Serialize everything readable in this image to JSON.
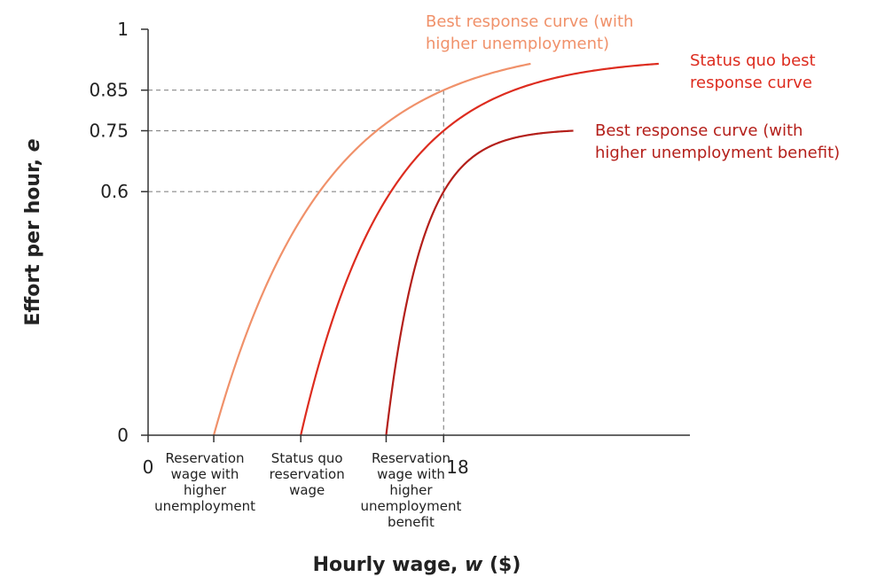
{
  "chart_data": {
    "type": "line",
    "title": "",
    "xlabel": {
      "text": "Hourly wage, ",
      "var": "w",
      "unit": " ($)"
    },
    "ylabel": {
      "text": "Effort per hour, ",
      "var": "e"
    },
    "xlim": [
      0,
      33
    ],
    "ylim": [
      0,
      1
    ],
    "grid": false,
    "x_ticks": [
      {
        "value": 0,
        "label": "0"
      },
      {
        "value": 18,
        "label": "18"
      }
    ],
    "y_ticks": [
      {
        "value": 0,
        "label": "0"
      },
      {
        "value": 0.6,
        "label": "0.6"
      },
      {
        "value": 0.75,
        "label": "0.75"
      },
      {
        "value": 0.85,
        "label": "0.85"
      },
      {
        "value": 1,
        "label": "1"
      }
    ],
    "wage_markers": [
      {
        "value": 4,
        "lines": [
          "Reservation",
          "wage with",
          "higher",
          "unemployment"
        ]
      },
      {
        "value": 9.3,
        "lines": [
          "Status quo",
          "reservation",
          "wage"
        ]
      },
      {
        "value": 14.5,
        "lines": [
          "Reservation",
          "wage with",
          "higher",
          "unemployment",
          "benefit"
        ]
      }
    ],
    "reference_lines": [
      {
        "x": 18,
        "y": 0.85
      },
      {
        "x": 18,
        "y": 0.75
      },
      {
        "x": 18,
        "y": 0.6
      }
    ],
    "series": [
      {
        "name": "Best response curve (with higher unemployment)",
        "label_lines": [
          "Best response curve (with",
          "higher unemployment)"
        ],
        "color": "#f0916a",
        "x0": 4,
        "x_end": 23.3,
        "points": [
          [
            4,
            0
          ],
          [
            18,
            0.85
          ],
          [
            23.3,
            0.915
          ]
        ]
      },
      {
        "name": "Status quo best response curve",
        "label_lines": [
          "Status quo best",
          "response curve"
        ],
        "color": "#dd2c1f",
        "x0": 9.3,
        "x_end": 31.1,
        "points": [
          [
            9.3,
            0
          ],
          [
            18,
            0.75
          ],
          [
            31.1,
            0.915
          ]
        ]
      },
      {
        "name": "Best response curve (with higher unemployment benefit)",
        "label_lines": [
          "Best response curve (with",
          "higher unemployment benefit)"
        ],
        "color": "#b41f1a",
        "x0": 14.5,
        "x_end": 25.9,
        "points": [
          [
            14.5,
            0
          ],
          [
            18,
            0.6
          ],
          [
            25.9,
            0.75
          ]
        ]
      }
    ]
  }
}
